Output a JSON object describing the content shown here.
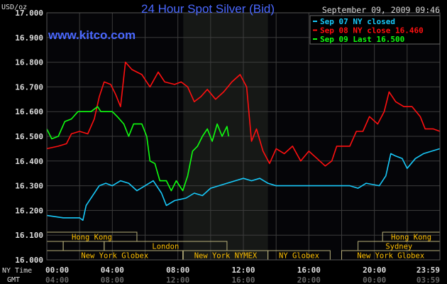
{
  "chart_data": {
    "type": "line",
    "title": "24 Hour Spot Silver (Bid)",
    "unit_label": "USD/oz",
    "watermark": "www.kitco.com",
    "timestamp": "September 09, 2009 09:46",
    "ylim": [
      16.0,
      17.0
    ],
    "yticks": [
      "17.000",
      "16.900",
      "16.800",
      "16.700",
      "16.600",
      "16.500",
      "16.400",
      "16.300",
      "16.200",
      "16.100",
      "16.000"
    ],
    "xlim_hours": [
      0,
      24
    ],
    "grid": true,
    "x_row_labels": {
      "ny": "NY Time",
      "gmt": "GMT"
    },
    "xticks_ny": [
      "00:00",
      "04:00",
      "08:00",
      "12:00",
      "16:00",
      "20:00",
      "23:59"
    ],
    "xticks_gmt": [
      "04:00",
      "08:00",
      "12:00",
      "16:00",
      "20:00",
      "00:00",
      "03:59"
    ],
    "shaded_region_hours": [
      8.33,
      13.5
    ],
    "legend": [
      {
        "text": "Sep 07 NY closed",
        "color": "#18c8f8"
      },
      {
        "text": "Sep 08 NY close 16.460",
        "color": "#ff1010"
      },
      {
        "text": "Sep 09 Last 16.500",
        "color": "#10ff10"
      }
    ],
    "series": [
      {
        "name": "Sep 07 NY closed",
        "color": "#18c8f8",
        "points": [
          [
            0,
            16.18
          ],
          [
            1,
            16.17
          ],
          [
            2,
            16.17
          ],
          [
            2.2,
            16.16
          ],
          [
            2.4,
            16.22
          ],
          [
            2.7,
            16.25
          ],
          [
            3.2,
            16.3
          ],
          [
            3.6,
            16.31
          ],
          [
            4,
            16.3
          ],
          [
            4.5,
            16.32
          ],
          [
            5,
            16.31
          ],
          [
            5.5,
            16.28
          ],
          [
            6,
            16.3
          ],
          [
            6.5,
            16.32
          ],
          [
            7,
            16.27
          ],
          [
            7.3,
            16.22
          ],
          [
            7.8,
            16.24
          ],
          [
            8.5,
            16.25
          ],
          [
            9,
            16.27
          ],
          [
            9.5,
            16.26
          ],
          [
            10,
            16.29
          ],
          [
            10.5,
            16.3
          ],
          [
            11,
            16.31
          ],
          [
            11.5,
            16.32
          ],
          [
            12,
            16.33
          ],
          [
            12.5,
            16.32
          ],
          [
            13,
            16.33
          ],
          [
            13.5,
            16.31
          ],
          [
            14,
            16.3
          ],
          [
            16,
            16.3
          ],
          [
            18.5,
            16.3
          ],
          [
            19,
            16.29
          ],
          [
            19.5,
            16.31
          ],
          [
            20.3,
            16.3
          ],
          [
            20.7,
            16.34
          ],
          [
            21,
            16.43
          ],
          [
            21.3,
            16.42
          ],
          [
            21.7,
            16.41
          ],
          [
            22,
            16.37
          ],
          [
            22.5,
            16.41
          ],
          [
            23,
            16.43
          ],
          [
            23.5,
            16.44
          ],
          [
            24,
            16.45
          ]
        ]
      },
      {
        "name": "Sep 08 NY close 16.460",
        "color": "#ff1010",
        "points": [
          [
            0,
            16.45
          ],
          [
            0.7,
            16.46
          ],
          [
            1.2,
            16.47
          ],
          [
            1.5,
            16.51
          ],
          [
            2,
            16.52
          ],
          [
            2.5,
            16.51
          ],
          [
            2.9,
            16.57
          ],
          [
            3.2,
            16.66
          ],
          [
            3.5,
            16.72
          ],
          [
            3.9,
            16.71
          ],
          [
            4.2,
            16.67
          ],
          [
            4.5,
            16.62
          ],
          [
            4.8,
            16.8
          ],
          [
            5.2,
            16.77
          ],
          [
            5.8,
            16.75
          ],
          [
            6.3,
            16.7
          ],
          [
            6.8,
            16.76
          ],
          [
            7.2,
            16.72
          ],
          [
            7.8,
            16.71
          ],
          [
            8.2,
            16.72
          ],
          [
            8.6,
            16.7
          ],
          [
            9,
            16.64
          ],
          [
            9.4,
            16.66
          ],
          [
            9.8,
            16.69
          ],
          [
            10.3,
            16.65
          ],
          [
            10.8,
            16.68
          ],
          [
            11.3,
            16.72
          ],
          [
            11.8,
            16.75
          ],
          [
            12.2,
            16.7
          ],
          [
            12.5,
            16.48
          ],
          [
            12.8,
            16.53
          ],
          [
            13.2,
            16.44
          ],
          [
            13.6,
            16.39
          ],
          [
            14,
            16.45
          ],
          [
            14.5,
            16.43
          ],
          [
            15,
            16.46
          ],
          [
            15.5,
            16.4
          ],
          [
            16,
            16.44
          ],
          [
            16.5,
            16.41
          ],
          [
            17,
            16.38
          ],
          [
            17.4,
            16.4
          ],
          [
            17.7,
            16.46
          ],
          [
            18.5,
            16.46
          ],
          [
            18.9,
            16.52
          ],
          [
            19.3,
            16.52
          ],
          [
            19.7,
            16.58
          ],
          [
            20.2,
            16.55
          ],
          [
            20.6,
            16.6
          ],
          [
            20.9,
            16.68
          ],
          [
            21.3,
            16.64
          ],
          [
            21.8,
            16.62
          ],
          [
            22.3,
            16.62
          ],
          [
            22.8,
            16.58
          ],
          [
            23.1,
            16.53
          ],
          [
            23.6,
            16.53
          ],
          [
            24,
            16.52
          ]
        ]
      },
      {
        "name": "Sep 09 Last 16.500",
        "color": "#10ff10",
        "points": [
          [
            0,
            16.53
          ],
          [
            0.3,
            16.49
          ],
          [
            0.7,
            16.5
          ],
          [
            1.1,
            16.56
          ],
          [
            1.5,
            16.57
          ],
          [
            1.9,
            16.6
          ],
          [
            2.3,
            16.6
          ],
          [
            2.7,
            16.6
          ],
          [
            3.1,
            16.62
          ],
          [
            3.3,
            16.6
          ],
          [
            3.6,
            16.6
          ],
          [
            4,
            16.6
          ],
          [
            4.3,
            16.58
          ],
          [
            4.7,
            16.55
          ],
          [
            5,
            16.5
          ],
          [
            5.3,
            16.55
          ],
          [
            5.8,
            16.55
          ],
          [
            6.1,
            16.5
          ],
          [
            6.3,
            16.4
          ],
          [
            6.6,
            16.39
          ],
          [
            6.9,
            16.32
          ],
          [
            7.3,
            16.32
          ],
          [
            7.6,
            16.28
          ],
          [
            7.9,
            16.32
          ],
          [
            8.3,
            16.28
          ],
          [
            8.6,
            16.34
          ],
          [
            8.9,
            16.44
          ],
          [
            9.2,
            16.46
          ],
          [
            9.5,
            16.5
          ],
          [
            9.8,
            16.53
          ],
          [
            10.1,
            16.48
          ],
          [
            10.4,
            16.55
          ],
          [
            10.7,
            16.5
          ],
          [
            11,
            16.54
          ],
          [
            11.1,
            16.5
          ]
        ]
      }
    ],
    "sessions": [
      {
        "row": 0,
        "label": "Hong Kong",
        "start": 0,
        "end": 5.5
      },
      {
        "row": 0,
        "label": "Hong Kong",
        "start": 20.5,
        "end": 24
      },
      {
        "row": 1,
        "label": "",
        "start": 0,
        "end": 1
      },
      {
        "row": 1,
        "label": "",
        "start": 1,
        "end": 3.5
      },
      {
        "row": 1,
        "label": "London",
        "start": 3.5,
        "end": 11
      },
      {
        "row": 1,
        "label": "Sydney",
        "start": 19,
        "end": 24
      },
      {
        "row": 2,
        "label": "New York Globex",
        "start": 0,
        "end": 8.3
      },
      {
        "row": 2,
        "label": "New York NYMEX",
        "start": 8.33,
        "end": 13.5
      },
      {
        "row": 2,
        "label": "NY Globex",
        "start": 13.5,
        "end": 17.3
      },
      {
        "row": 2,
        "label": "New York Globex",
        "start": 18,
        "end": 24
      }
    ]
  }
}
